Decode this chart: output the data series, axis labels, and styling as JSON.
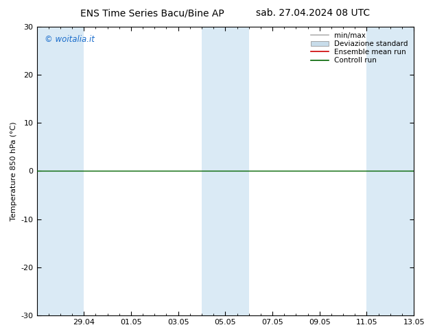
{
  "title_left": "ENS Time Series Bacu/Bine AP",
  "title_right": "sab. 27.04.2024 08 UTC",
  "ylabel": "Temperature 850 hPa (°C)",
  "ylim": [
    -30,
    30
  ],
  "yticks": [
    -30,
    -20,
    -10,
    0,
    10,
    20,
    30
  ],
  "xtick_labels": [
    "29.04",
    "01.05",
    "03.05",
    "05.05",
    "07.05",
    "09.05",
    "11.05",
    "13.05"
  ],
  "xtick_positions": [
    2,
    4,
    6,
    8,
    10,
    12,
    14,
    16
  ],
  "x_min": 0,
  "x_max": 16,
  "shaded_band_color": "#daeaf5",
  "shaded_bands": [
    [
      0,
      1
    ],
    [
      1,
      2
    ],
    [
      7,
      8
    ],
    [
      8,
      9
    ],
    [
      14,
      15
    ],
    [
      15,
      16
    ]
  ],
  "legend_entries": [
    {
      "label": "min/max",
      "color": "#b0b0b0",
      "lw": 1.2,
      "type": "line"
    },
    {
      "label": "Deviazione standard",
      "color": "#c8dcea",
      "lw": 8,
      "type": "band"
    },
    {
      "label": "Ensemble mean run",
      "color": "#cc0000",
      "lw": 1.2,
      "type": "line"
    },
    {
      "label": "Controll run",
      "color": "#006400",
      "lw": 1.2,
      "type": "line"
    }
  ],
  "control_run_value": 0,
  "control_run_color": "#006400",
  "control_run_lw": 1.0,
  "watermark": "© woitalia.it",
  "watermark_color": "#1a6dcc",
  "background_color": "#ffffff",
  "title_fontsize": 10,
  "ylabel_fontsize": 8,
  "tick_fontsize": 8,
  "legend_fontsize": 7.5
}
